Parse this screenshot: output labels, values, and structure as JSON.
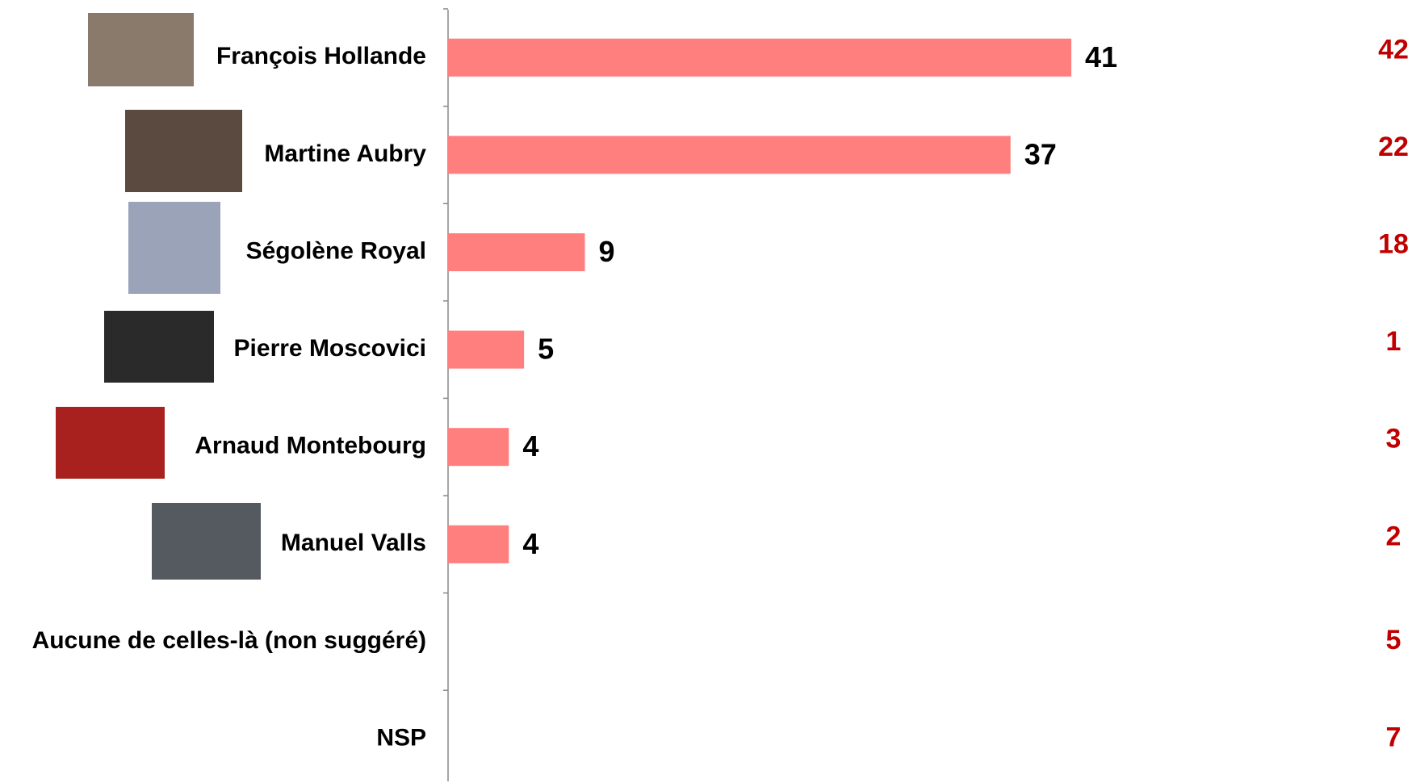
{
  "chart_data": {
    "type": "bar",
    "orientation": "horizontal",
    "categories": [
      "François Hollande",
      "Martine Aubry",
      "Ségolène Royal",
      "Pierre Moscovici",
      "Arnaud Montebourg",
      "Manuel Valls",
      "Aucune de celles-là (non suggéré)",
      "NSP"
    ],
    "values": [
      41,
      37,
      9,
      5,
      4,
      4,
      null,
      null
    ],
    "color": "#ff7f7f",
    "comparison_values": [
      42,
      22,
      18,
      1,
      3,
      2,
      5,
      7
    ],
    "comparison_color": "#c00000",
    "xlim": [
      0,
      45
    ]
  }
}
